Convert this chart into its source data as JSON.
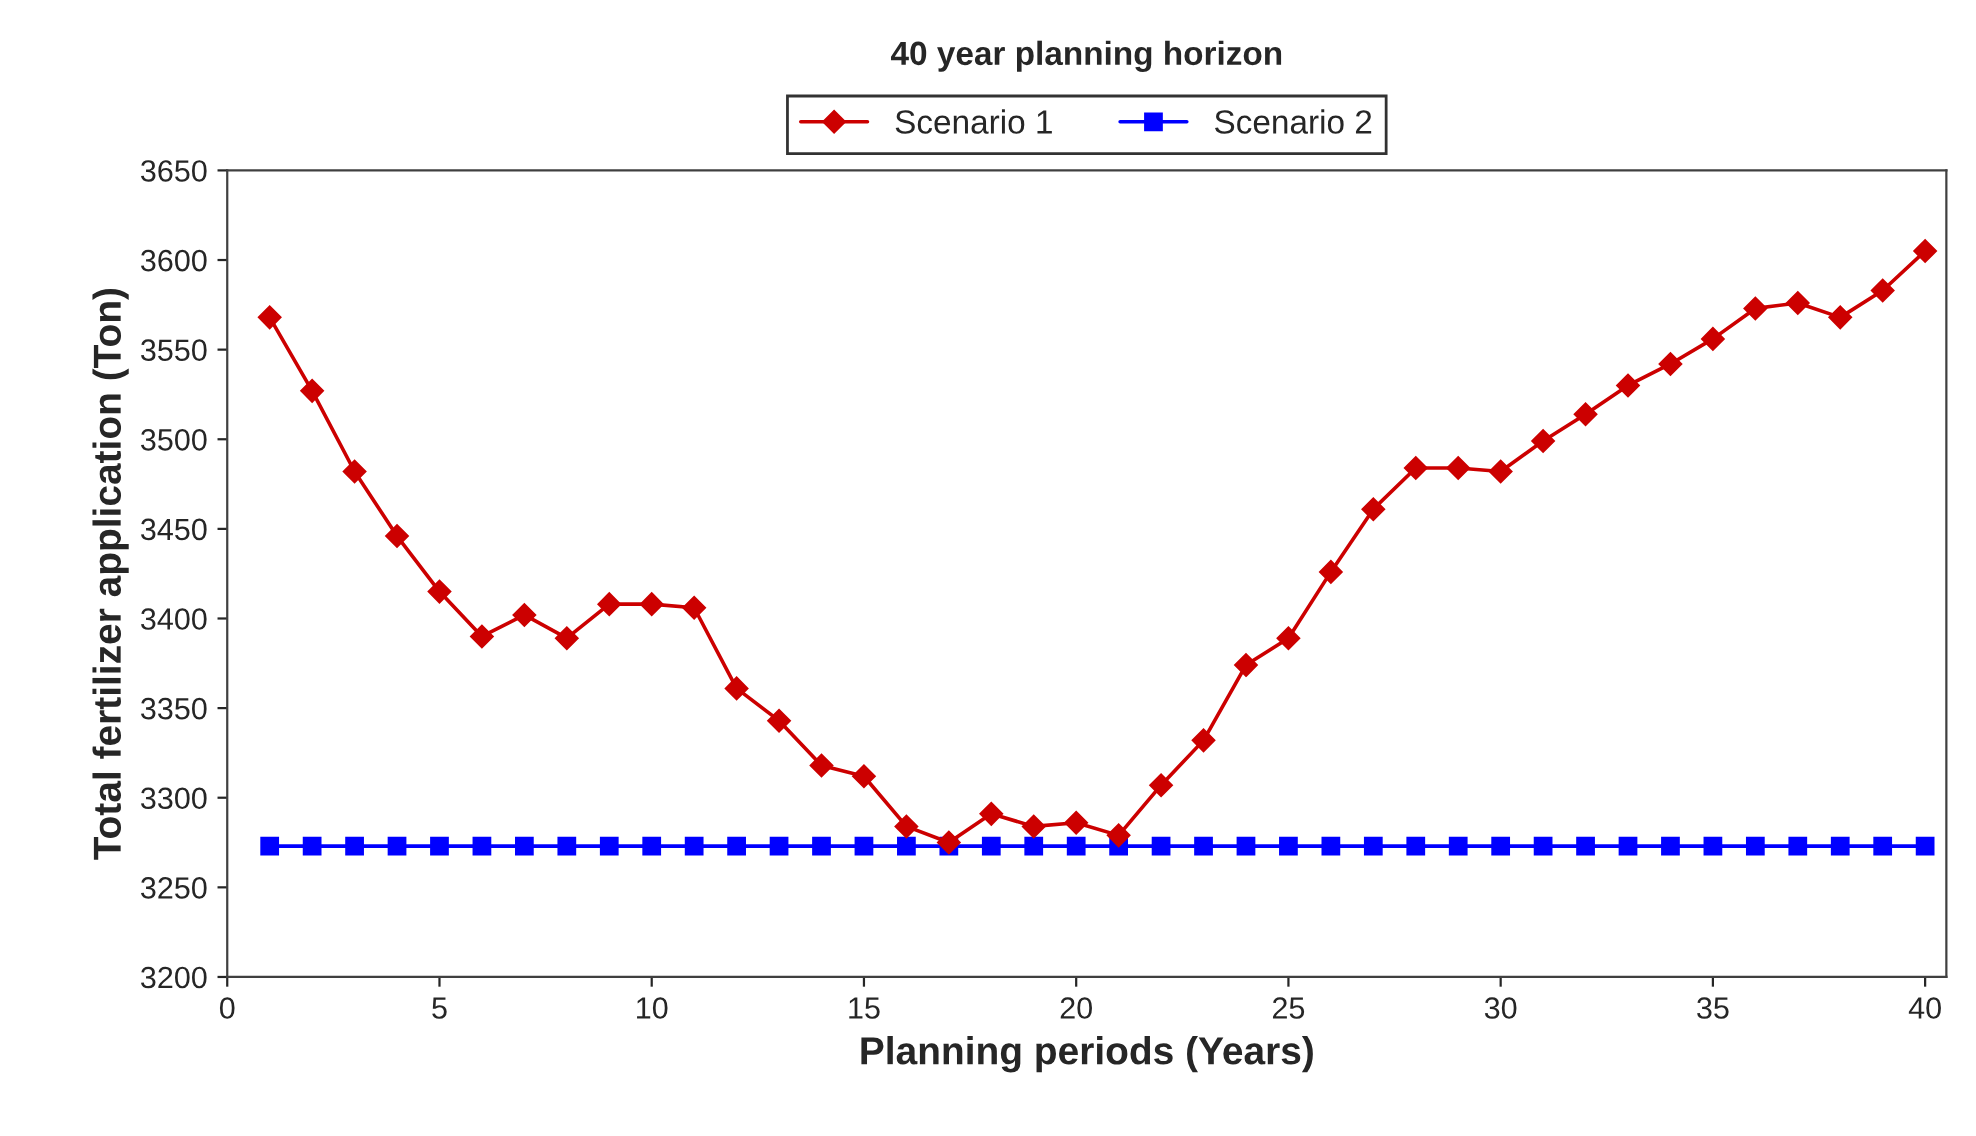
{
  "chart_data": {
    "type": "line",
    "title": "40 year planning horizon",
    "xlabel": "Planning periods (Years)",
    "ylabel": "Total fertilizer application (Ton)",
    "x": [
      1,
      2,
      3,
      4,
      5,
      6,
      7,
      8,
      9,
      10,
      11,
      12,
      13,
      14,
      15,
      16,
      17,
      18,
      19,
      20,
      21,
      22,
      23,
      24,
      25,
      26,
      27,
      28,
      29,
      30,
      31,
      32,
      33,
      34,
      35,
      36,
      37,
      38,
      39,
      40
    ],
    "series": [
      {
        "name": "Scenario 1",
        "color": "#cc0000",
        "marker": "diamond",
        "values": [
          3568,
          3527,
          3482,
          3446,
          3415,
          3390,
          3402,
          3389,
          3408,
          3408,
          3406,
          3361,
          3343,
          3318,
          3312,
          3284,
          3275,
          3291,
          3284,
          3286,
          3279,
          3307,
          3332,
          3374,
          3389,
          3426,
          3461,
          3484,
          3484,
          3482,
          3499,
          3514,
          3530,
          3542,
          3556,
          3573,
          3576,
          3568,
          3583,
          3605
        ]
      },
      {
        "name": "Scenario 2",
        "color": "#0000ff",
        "marker": "square",
        "values": [
          3273,
          3273,
          3273,
          3273,
          3273,
          3273,
          3273,
          3273,
          3273,
          3273,
          3273,
          3273,
          3273,
          3273,
          3273,
          3273,
          3273,
          3273,
          3273,
          3273,
          3273,
          3273,
          3273,
          3273,
          3273,
          3273,
          3273,
          3273,
          3273,
          3273,
          3273,
          3273,
          3273,
          3273,
          3273,
          3273,
          3273,
          3273,
          3273,
          3273
        ]
      }
    ],
    "xlim": [
      0,
      40.5
    ],
    "xticks": [
      0,
      5,
      10,
      15,
      20,
      25,
      30,
      35,
      40
    ],
    "ylim": [
      3200,
      3650
    ],
    "yticks": [
      3200,
      3250,
      3300,
      3350,
      3400,
      3450,
      3500,
      3550,
      3600,
      3650
    ],
    "grid": false,
    "legend": "top",
    "line_style": "solid"
  }
}
